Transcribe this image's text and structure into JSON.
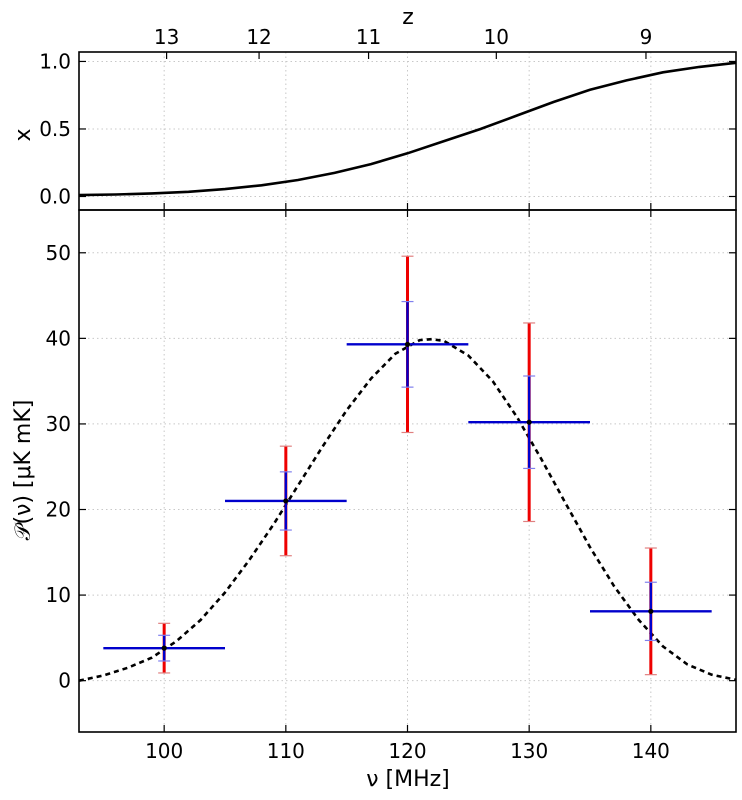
{
  "chart_data": [
    {
      "type": "line",
      "panel": "top",
      "xlabel_top": "z",
      "ylabel": "x",
      "xlim": [
        93,
        147
      ],
      "ylim": [
        -0.1,
        1.07
      ],
      "grid": true,
      "y_ticks": [
        {
          "value": 0.0,
          "label": "0.0"
        },
        {
          "value": 0.5,
          "label": "0.5"
        },
        {
          "value": 1.0,
          "label": "1.0"
        }
      ],
      "top_ticks": [
        {
          "x": 100.2,
          "label": "13"
        },
        {
          "x": 107.8,
          "label": "12"
        },
        {
          "x": 116.8,
          "label": "11"
        },
        {
          "x": 127.3,
          "label": "10"
        },
        {
          "x": 139.6,
          "label": "9"
        }
      ],
      "series": [
        {
          "color": "#000000",
          "style": "solid",
          "x": [
            93,
            96,
            99,
            102,
            105,
            108,
            111,
            114,
            117,
            120,
            123,
            126,
            129,
            132,
            135,
            138,
            141,
            144,
            147
          ],
          "y": [
            0.01,
            0.015,
            0.023,
            0.035,
            0.055,
            0.083,
            0.122,
            0.175,
            0.24,
            0.32,
            0.41,
            0.5,
            0.6,
            0.7,
            0.79,
            0.86,
            0.92,
            0.96,
            0.99
          ]
        }
      ]
    },
    {
      "type": "scatter",
      "panel": "bottom",
      "xlabel": "ν [MHz]",
      "ylabel": "𝒫(ν) [μK mK]",
      "xlim": [
        93,
        147
      ],
      "ylim": [
        -6,
        55
      ],
      "grid": true,
      "x_ticks": [
        100,
        110,
        120,
        130,
        140
      ],
      "y_ticks": [
        0,
        10,
        20,
        30,
        40,
        50
      ],
      "points": [
        {
          "x": 100,
          "y": 3.8,
          "xerr": 5,
          "yerr_blue": 1.5,
          "yerr_red": 2.9
        },
        {
          "x": 110,
          "y": 21.0,
          "xerr": 5,
          "yerr_blue": 3.4,
          "yerr_red": 6.4
        },
        {
          "x": 120,
          "y": 39.3,
          "xerr": 5,
          "yerr_blue": 5.0,
          "yerr_red": 10.3
        },
        {
          "x": 130,
          "y": 30.2,
          "xerr": 5,
          "yerr_blue": 5.4,
          "yerr_red": 11.6
        },
        {
          "x": 140,
          "y": 8.1,
          "xerr": 5,
          "yerr_blue": 3.4,
          "yerr_red": 7.4
        }
      ],
      "errorbar_colors": {
        "inner": "#0000cc",
        "outer": "#ee0000"
      },
      "model_curve": {
        "color": "#000000",
        "style": "dashed",
        "x": [
          93,
          95,
          97,
          99,
          101,
          103,
          105,
          107,
          109,
          111,
          113,
          115,
          117,
          119,
          121,
          122,
          123,
          125,
          127,
          129,
          131,
          133,
          135,
          137,
          139,
          141,
          143,
          145,
          147
        ],
        "y": [
          0,
          0.6,
          1.5,
          2.7,
          4.6,
          7.1,
          10.3,
          14.1,
          18.3,
          22.8,
          27.3,
          31.6,
          35.3,
          38.2,
          39.8,
          39.9,
          39.7,
          38.0,
          35.0,
          30.8,
          25.9,
          20.7,
          15.6,
          11.0,
          7.1,
          4.0,
          1.9,
          0.7,
          0.1
        ]
      }
    }
  ]
}
